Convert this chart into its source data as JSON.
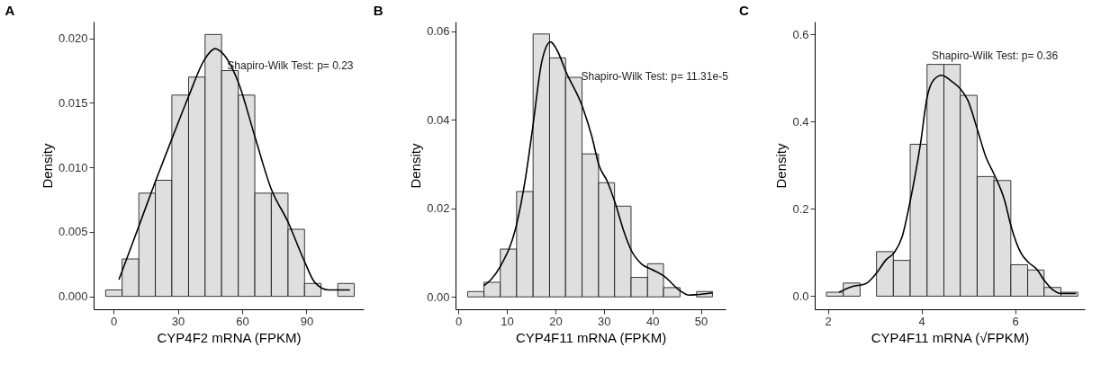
{
  "chart_data": [
    {
      "type": "histogram",
      "title": "A",
      "xlabel": "CYP4F2 mRNA (FPKM)",
      "ylabel": "Density",
      "color": "#dcdcdc",
      "bins": [
        -3.7,
        4.0,
        11.8,
        19.5,
        27.2,
        35.0,
        42.7,
        50.4,
        58.2,
        65.9,
        73.6,
        81.4,
        89.1,
        96.8,
        104.6,
        112.3
      ],
      "values": [
        0.0005,
        0.0029,
        0.008,
        0.009,
        0.0156,
        0.017,
        0.0203,
        0.0175,
        0.0156,
        0.008,
        0.008,
        0.0052,
        0.001,
        null,
        0.001
      ],
      "series": [
        {
          "type": "line",
          "color": "#000000",
          "x": [
            2.5,
            6,
            11.7,
            19.5,
            27.2,
            35,
            42.6,
            47.3,
            50.5,
            58.2,
            65.9,
            73.6,
            81.3,
            89.1,
            93.8,
            100.2,
            110.3
          ],
          "values": [
            0.0013,
            0.00285,
            0.0054,
            0.0089,
            0.0122,
            0.0155,
            0.0184,
            0.0192,
            0.0189,
            0.0166,
            0.0124,
            0.0083,
            0.0058,
            0.0027,
            0.0011,
            0.0005,
            0.0005
          ]
        }
      ],
      "xlim": [
        -9.3,
        116.7
      ],
      "xticks": [
        0,
        30,
        60,
        90
      ],
      "ylim": [
        -0.001,
        0.0213
      ],
      "yticks": [
        {
          "value": 0,
          "label": "0.000"
        },
        {
          "value": 0.005,
          "label": "0.005"
        },
        {
          "value": 0.01,
          "label": "0.010"
        },
        {
          "value": 0.015,
          "label": "0.015"
        },
        {
          "value": 0.02,
          "label": "0.020"
        }
      ],
      "annotations": [
        {
          "text": "Shapiro-Wilk Test: p= 0.23",
          "x": 53,
          "y": 0.0179
        }
      ],
      "grid": false
    },
    {
      "type": "histogram",
      "title": "B",
      "xlabel": "CYP4F11 mRNA (FPKM)",
      "ylabel": "Density",
      "color": "#dcdcdc",
      "bins": [
        1.9,
        5.27,
        8.64,
        12.0,
        15.4,
        18.8,
        22.1,
        25.5,
        28.9,
        32.2,
        35.6,
        39.0,
        42.3,
        45.7,
        49.1,
        52.4
      ],
      "values": [
        0.0012,
        0.0033,
        0.0108,
        0.0238,
        0.0594,
        0.054,
        0.0496,
        0.0323,
        0.0258,
        0.0205,
        0.0044,
        0.0075,
        0.0021,
        null,
        0.0012
      ],
      "series": [
        {
          "type": "line",
          "color": "#000000",
          "x": [
            5.25,
            8.6,
            12,
            13.9,
            15.3,
            17.2,
            19,
            20.4,
            22.2,
            25.6,
            27.5,
            29,
            30.7,
            32.3,
            34,
            35.7,
            37.8,
            39.9,
            42.4,
            45.7,
            47.5,
            49.1,
            52.4
          ],
          "values": [
            0.0025,
            0.0068,
            0.0164,
            0.0273,
            0.0381,
            0.0532,
            0.0576,
            0.0556,
            0.0508,
            0.0429,
            0.0363,
            0.0297,
            0.0261,
            0.0213,
            0.0152,
            0.0104,
            0.0074,
            0.0062,
            0.0047,
            0.0014,
            0.0004,
            0.0005,
            0.0009
          ]
        }
      ],
      "xlim": [
        -0.6,
        55.1
      ],
      "xticks": [
        0,
        10,
        20,
        30,
        40,
        50
      ],
      "ylim": [
        -0.0028,
        0.0622
      ],
      "yticks": [
        {
          "value": 0,
          "label": "0.00"
        },
        {
          "value": 0.02,
          "label": "0.02"
        },
        {
          "value": 0.04,
          "label": "0.04"
        },
        {
          "value": 0.06,
          "label": "0.06"
        }
      ],
      "annotations": [
        {
          "text": "Shapiro-Wilk Test: p= 11.31e-5",
          "x": 25.3,
          "y": 0.0499
        }
      ],
      "grid": false
    },
    {
      "type": "histogram",
      "title": "C",
      "xlabel": "CYP4F11 mRNA (√FPKM)",
      "ylabel": "Density",
      "color": "#dcdcdc",
      "bins": [
        1.97,
        2.33,
        2.69,
        3.04,
        3.4,
        3.76,
        4.12,
        4.48,
        4.83,
        5.19,
        5.55,
        5.91,
        6.27,
        6.62,
        6.98,
        7.34
      ],
      "values": [
        0.009,
        0.03,
        null,
        0.102,
        0.082,
        0.348,
        0.531,
        0.531,
        0.46,
        0.274,
        0.265,
        0.072,
        0.06,
        0.02,
        0.009
      ],
      "series": [
        {
          "type": "line",
          "color": "#000000",
          "x": [
            2.24,
            2.52,
            2.8,
            3.04,
            3.25,
            3.42,
            3.59,
            3.76,
            3.98,
            4.12,
            4.26,
            4.43,
            4.65,
            4.84,
            4.99,
            5.2,
            5.38,
            5.55,
            5.78,
            5.91,
            6.12,
            6.28,
            6.46,
            6.62,
            6.79,
            6.99,
            7.3
          ],
          "values": [
            0.009,
            0.022,
            0.028,
            0.053,
            0.084,
            0.1,
            0.137,
            0.218,
            0.349,
            0.455,
            0.495,
            0.506,
            0.492,
            0.474,
            0.449,
            0.38,
            0.318,
            0.28,
            0.218,
            0.162,
            0.1,
            0.078,
            0.062,
            0.037,
            0.016,
            0.006,
            0.006
          ]
        }
      ],
      "xlim": [
        1.72,
        7.49
      ],
      "xticks": [
        2,
        4,
        6
      ],
      "ylim": [
        -0.03,
        0.629
      ],
      "yticks": [
        {
          "value": 0,
          "label": "0.0"
        },
        {
          "value": 0.2,
          "label": "0.2"
        },
        {
          "value": 0.4,
          "label": "0.4"
        },
        {
          "value": 0.6,
          "label": "0.6"
        }
      ],
      "annotations": [
        "Shapiro-Wilk Test: p= 0.36"
      ],
      "grid": false
    }
  ]
}
